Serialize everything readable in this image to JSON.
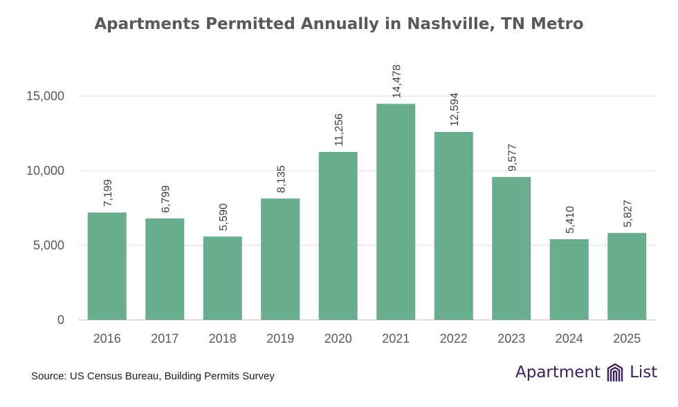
{
  "title": "Apartments Permitted Annually in Nashville, TN Metro",
  "source": "Source: US Census Bureau, Building Permits Survey",
  "brand": {
    "word1": "Apartment",
    "word2": "List"
  },
  "colors": {
    "bar": "#67ad8e",
    "grid": "#d9d9d9",
    "text": "#595959",
    "brand": "#3a1f5c"
  },
  "chart_data": {
    "type": "bar",
    "title": "Apartments Permitted Annually in Nashville, TN Metro",
    "categories": [
      "2016",
      "2017",
      "2018",
      "2019",
      "2020",
      "2021",
      "2022",
      "2023",
      "2024",
      "2025"
    ],
    "values": [
      7199,
      6799,
      5590,
      8135,
      11256,
      14478,
      12594,
      9577,
      5410,
      5827
    ],
    "data_labels": [
      "7,199",
      "6,799",
      "5,590",
      "8,135",
      "11,256",
      "14,478",
      "12,594",
      "9,577",
      "5,410",
      "5,827"
    ],
    "y_ticks": [
      0,
      5000,
      10000,
      15000
    ],
    "y_tick_labels": [
      "0",
      "5,000",
      "10,000",
      "15,000"
    ],
    "ylim": [
      0,
      17500
    ],
    "xlabel": "",
    "ylabel": "",
    "grid": true,
    "legend": "none"
  }
}
